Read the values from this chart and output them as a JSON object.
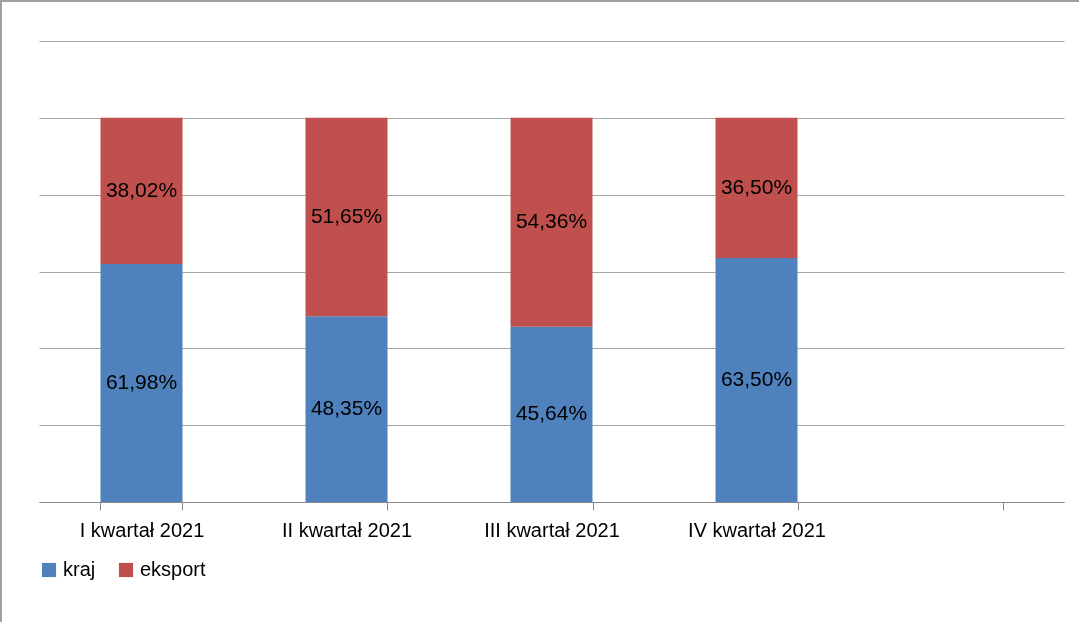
{
  "chart_data": {
    "type": "bar",
    "stacked": true,
    "categories": [
      "I kwartał 2021",
      "II kwartał 2021",
      "III kwartał 2021",
      "IV kwartał 2021",
      null
    ],
    "series": [
      {
        "name": "kraj",
        "color": "#4f81bd",
        "values": [
          61.98,
          48.35,
          45.64,
          63.5,
          null
        ],
        "value_labels": [
          "61,98%",
          "48,35%",
          "45,64%",
          "63,50%",
          null
        ]
      },
      {
        "name": "eksport",
        "color": "#c0504d",
        "values": [
          38.02,
          51.65,
          54.36,
          36.5,
          null
        ],
        "value_labels": [
          "38,02%",
          "51,65%",
          "54,36%",
          "36,50%",
          null
        ]
      }
    ],
    "ylim": [
      0,
      120
    ],
    "yticks": [
      {
        "value": 0,
        "label": null
      },
      {
        "value": 20,
        "label": null
      },
      {
        "value": 40,
        "label": null
      },
      {
        "value": 60,
        "label": null
      },
      {
        "value": 80,
        "label": null
      },
      {
        "value": 100,
        "label": null
      },
      {
        "value": 120,
        "label": null
      }
    ],
    "grid": "y",
    "tick_labels": "x",
    "legend": "bottom"
  }
}
